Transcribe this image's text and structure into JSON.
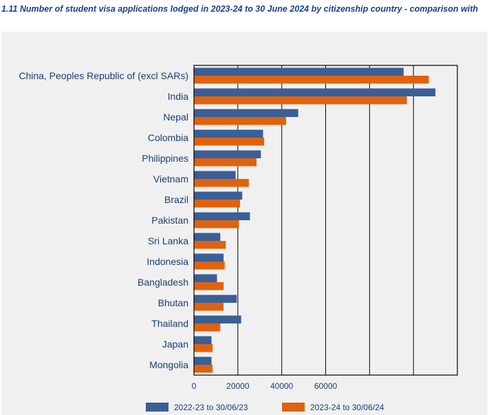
{
  "title": "1.11 Number of student visa applications lodged in 2023-24 to 30 June 2024 by citizenship country - comparison with",
  "chart_data": {
    "type": "bar",
    "orientation": "horizontal",
    "categories": [
      "China, Peoples Republic of (excl SARs)",
      "India",
      "Nepal",
      "Colombia",
      "Philippines",
      "Vietnam",
      "Brazil",
      "Pakistan",
      "Sri Lanka",
      "Indonesia",
      "Bangladesh",
      "Bhutan",
      "Thailand",
      "Japan",
      "Mongolia"
    ],
    "series": [
      {
        "name": "2022-23 to 30/06/23",
        "color": "#3a5f96",
        "values": [
          95500,
          110000,
          47500,
          31500,
          30500,
          19000,
          22000,
          25500,
          12000,
          13500,
          10500,
          19500,
          21500,
          8000,
          8000
        ]
      },
      {
        "name": "2023-24 to 30/06/24",
        "color": "#e0620e",
        "values": [
          107000,
          97000,
          42000,
          32000,
          28500,
          25000,
          21000,
          20500,
          14500,
          14000,
          13500,
          13500,
          12000,
          8500,
          8500
        ]
      }
    ],
    "xticks": [
      0,
      20000,
      40000,
      60000
    ],
    "xlim": [
      0,
      120000
    ],
    "grid": true,
    "legend_position": "bottom"
  }
}
